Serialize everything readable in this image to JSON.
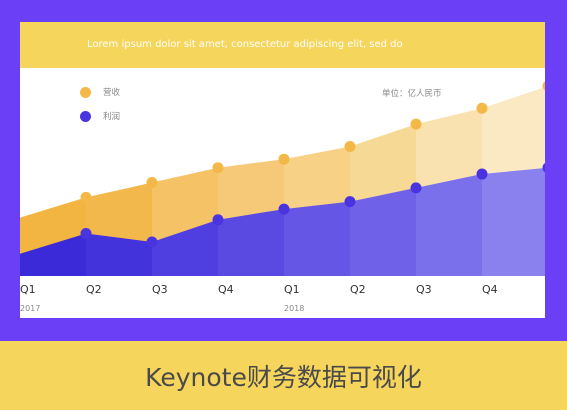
{
  "header": {
    "text": "Lorem ipsum dolor sit amet, consectetur adipiscing elit, sed do"
  },
  "unit_label": "单位：亿人民币",
  "caption": "Keynote财务数据可视化",
  "colors": {
    "frame": "#6a3ff5",
    "header": "#f6d55c",
    "revenue": "#f3b847",
    "profit": "#4a34e0",
    "caption_bar": "#f6d55c"
  },
  "chart_data": {
    "type": "area",
    "categories": [
      "Q1",
      "Q2",
      "Q3",
      "Q4",
      "Q1",
      "Q2",
      "Q3",
      "Q4",
      ""
    ],
    "years": [
      {
        "label": "2017",
        "at_index": 0
      },
      {
        "label": "2018",
        "at_index": 4
      }
    ],
    "series": [
      {
        "name": "营收",
        "values": [
          26,
          45,
          59,
          73,
          81,
          93,
          114,
          129,
          150
        ]
      },
      {
        "name": "利润",
        "values": [
          -8,
          11,
          3,
          24,
          34,
          41,
          54,
          67,
          73
        ]
      }
    ],
    "ylim": [
      -29,
      165
    ],
    "legend": "top-left"
  }
}
